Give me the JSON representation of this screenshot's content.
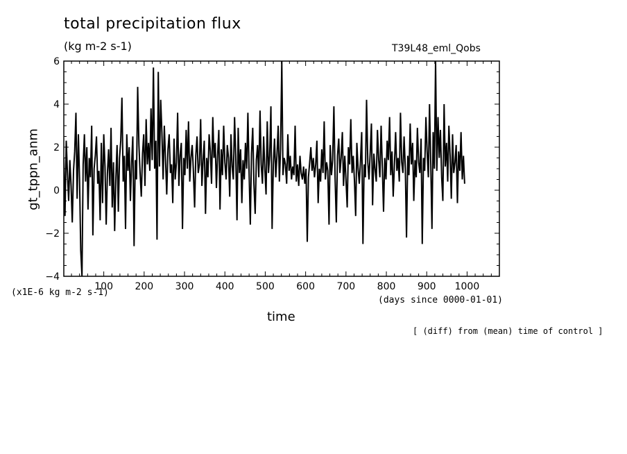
{
  "chart_data": {
    "type": "line",
    "title": "total precipitation flux",
    "subtitle": "(kg m-2 s-1)",
    "tag": "T39L48_eml_Qobs",
    "ylabel": "gt_tppn_anm",
    "xlabel": "time",
    "y_unit_note": "(x1E-6 kg m-2 s-1)",
    "x_unit_note": "(days since 0000-01-01)",
    "footnote": "[ (diff) from (mean) time of control ]",
    "xlim": [
      1,
      1080
    ],
    "ylim": [
      -4,
      6
    ],
    "xticks": [
      100,
      200,
      300,
      400,
      500,
      600,
      700,
      800,
      900,
      1000
    ],
    "yticks": [
      -4,
      -2,
      0,
      2,
      4,
      6
    ],
    "grid": false,
    "series": [
      {
        "color": "#000000",
        "sample_interval_days": 3,
        "x_start": 1,
        "values": [
          1.5,
          -1.2,
          2.3,
          0.8,
          -0.5,
          1.4,
          0.2,
          -1.5,
          0.9,
          1.8,
          3.6,
          -0.4,
          2.6,
          0.5,
          -2.8,
          -4.0,
          1.2,
          2.6,
          0.4,
          2.0,
          -0.9,
          1.5,
          0.6,
          3.0,
          -2.1,
          1.0,
          1.6,
          2.5,
          0.3,
          0.9,
          -1.4,
          2.2,
          -0.6,
          2.6,
          1.1,
          -1.6,
          0.8,
          1.9,
          0.2,
          2.9,
          -0.8,
          1.3,
          -1.9,
          0.6,
          2.1,
          -1.0,
          1.5,
          2.3,
          4.3,
          0.4,
          1.6,
          -1.8,
          2.6,
          0.9,
          2.0,
          -0.5,
          1.3,
          2.5,
          -2.6,
          1.4,
          0.5,
          4.8,
          2.1,
          0.8,
          -0.3,
          1.7,
          2.6,
          0.2,
          3.3,
          1.2,
          2.2,
          0.9,
          3.8,
          1.4,
          5.7,
          1.0,
          2.3,
          -2.3,
          5.5,
          1.1,
          4.2,
          2.7,
          0.5,
          3.0,
          1.4,
          -0.2,
          1.9,
          2.6,
          0.8,
          1.2,
          -0.6,
          2.4,
          0.5,
          1.3,
          3.6,
          0.2,
          1.6,
          2.2,
          -1.8,
          1.5,
          0.7,
          2.8,
          1.0,
          3.2,
          0.4,
          1.5,
          2.1,
          0.9,
          -0.8,
          1.6,
          2.5,
          0.8,
          1.2,
          3.3,
          0.2,
          1.4,
          2.3,
          -1.1,
          1.5,
          0.6,
          2.6,
          1.8,
          0.3,
          3.4,
          1.5,
          2.2,
          0.1,
          1.6,
          2.8,
          -0.9,
          1.9,
          0.7,
          3.0,
          1.3,
          0.5,
          2.1,
          1.5,
          -0.3,
          2.6,
          1.1,
          0.5,
          3.4,
          1.6,
          -1.4,
          2.9,
          0.8,
          1.9,
          -0.6,
          1.4,
          0.5,
          2.2,
          1.0,
          3.6,
          0.9,
          -1.6,
          1.7,
          2.9,
          0.3,
          -1.1,
          1.4,
          2.1,
          0.6,
          3.7,
          1.2,
          0.3,
          2.5,
          1.0,
          -0.2,
          3.2,
          0.8,
          1.6,
          3.9,
          -1.8,
          1.2,
          2.4,
          0.6,
          1.6,
          3.0,
          0.4,
          1.9,
          6.0,
          0.7,
          1.5,
          1.2,
          0.3,
          2.6,
          0.9,
          1.6,
          0.5,
          1.1,
          0.7,
          3.0,
          0.4,
          1.2,
          0.2,
          1.6,
          0.8,
          0.5,
          1.1,
          0.3,
          1.0,
          -2.4,
          0.6,
          1.3,
          2.0,
          0.9,
          1.5,
          0.6,
          1.2,
          2.3,
          -0.6,
          1.0,
          0.4,
          1.9,
          0.8,
          3.2,
          0.5,
          1.3,
          0.9,
          -1.6,
          2.1,
          0.7,
          1.4,
          3.9,
          0.6,
          -1.5,
          1.6,
          2.4,
          0.8,
          1.5,
          2.7,
          0.2,
          1.6,
          0.5,
          -0.8,
          2.0,
          1.2,
          3.3,
          0.8,
          1.6,
          0.4,
          -1.2,
          2.2,
          1.0,
          0.3,
          1.4,
          2.7,
          -2.5,
          1.2,
          0.6,
          4.2,
          1.3,
          0.5,
          1.8,
          3.1,
          -0.7,
          1.7,
          1.0,
          0.4,
          2.8,
          1.4,
          0.6,
          3.0,
          1.1,
          -1.0,
          1.5,
          0.5,
          2.3,
          1.4,
          3.4,
          0.7,
          1.8,
          -0.3,
          1.2,
          2.7,
          0.9,
          1.5,
          0.4,
          3.6,
          1.3,
          0.8,
          2.5,
          1.0,
          -2.2,
          1.6,
          0.7,
          3.1,
          1.2,
          2.2,
          -0.5,
          1.4,
          0.6,
          2.9,
          1.3,
          0.8,
          2.4,
          -2.5,
          1.5,
          0.9,
          3.4,
          1.8,
          0.6,
          4.0,
          1.2,
          -1.8,
          2.7,
          1.0,
          6.0,
          0.9,
          3.4,
          1.5,
          2.8,
          0.6,
          -0.5,
          4.0,
          1.1,
          2.2,
          0.4,
          3.0,
          1.6,
          -0.4,
          2.6,
          0.8,
          1.3,
          2.1,
          -0.6,
          1.8,
          0.9,
          2.7,
          0.5,
          1.6,
          0.3
        ]
      }
    ]
  }
}
